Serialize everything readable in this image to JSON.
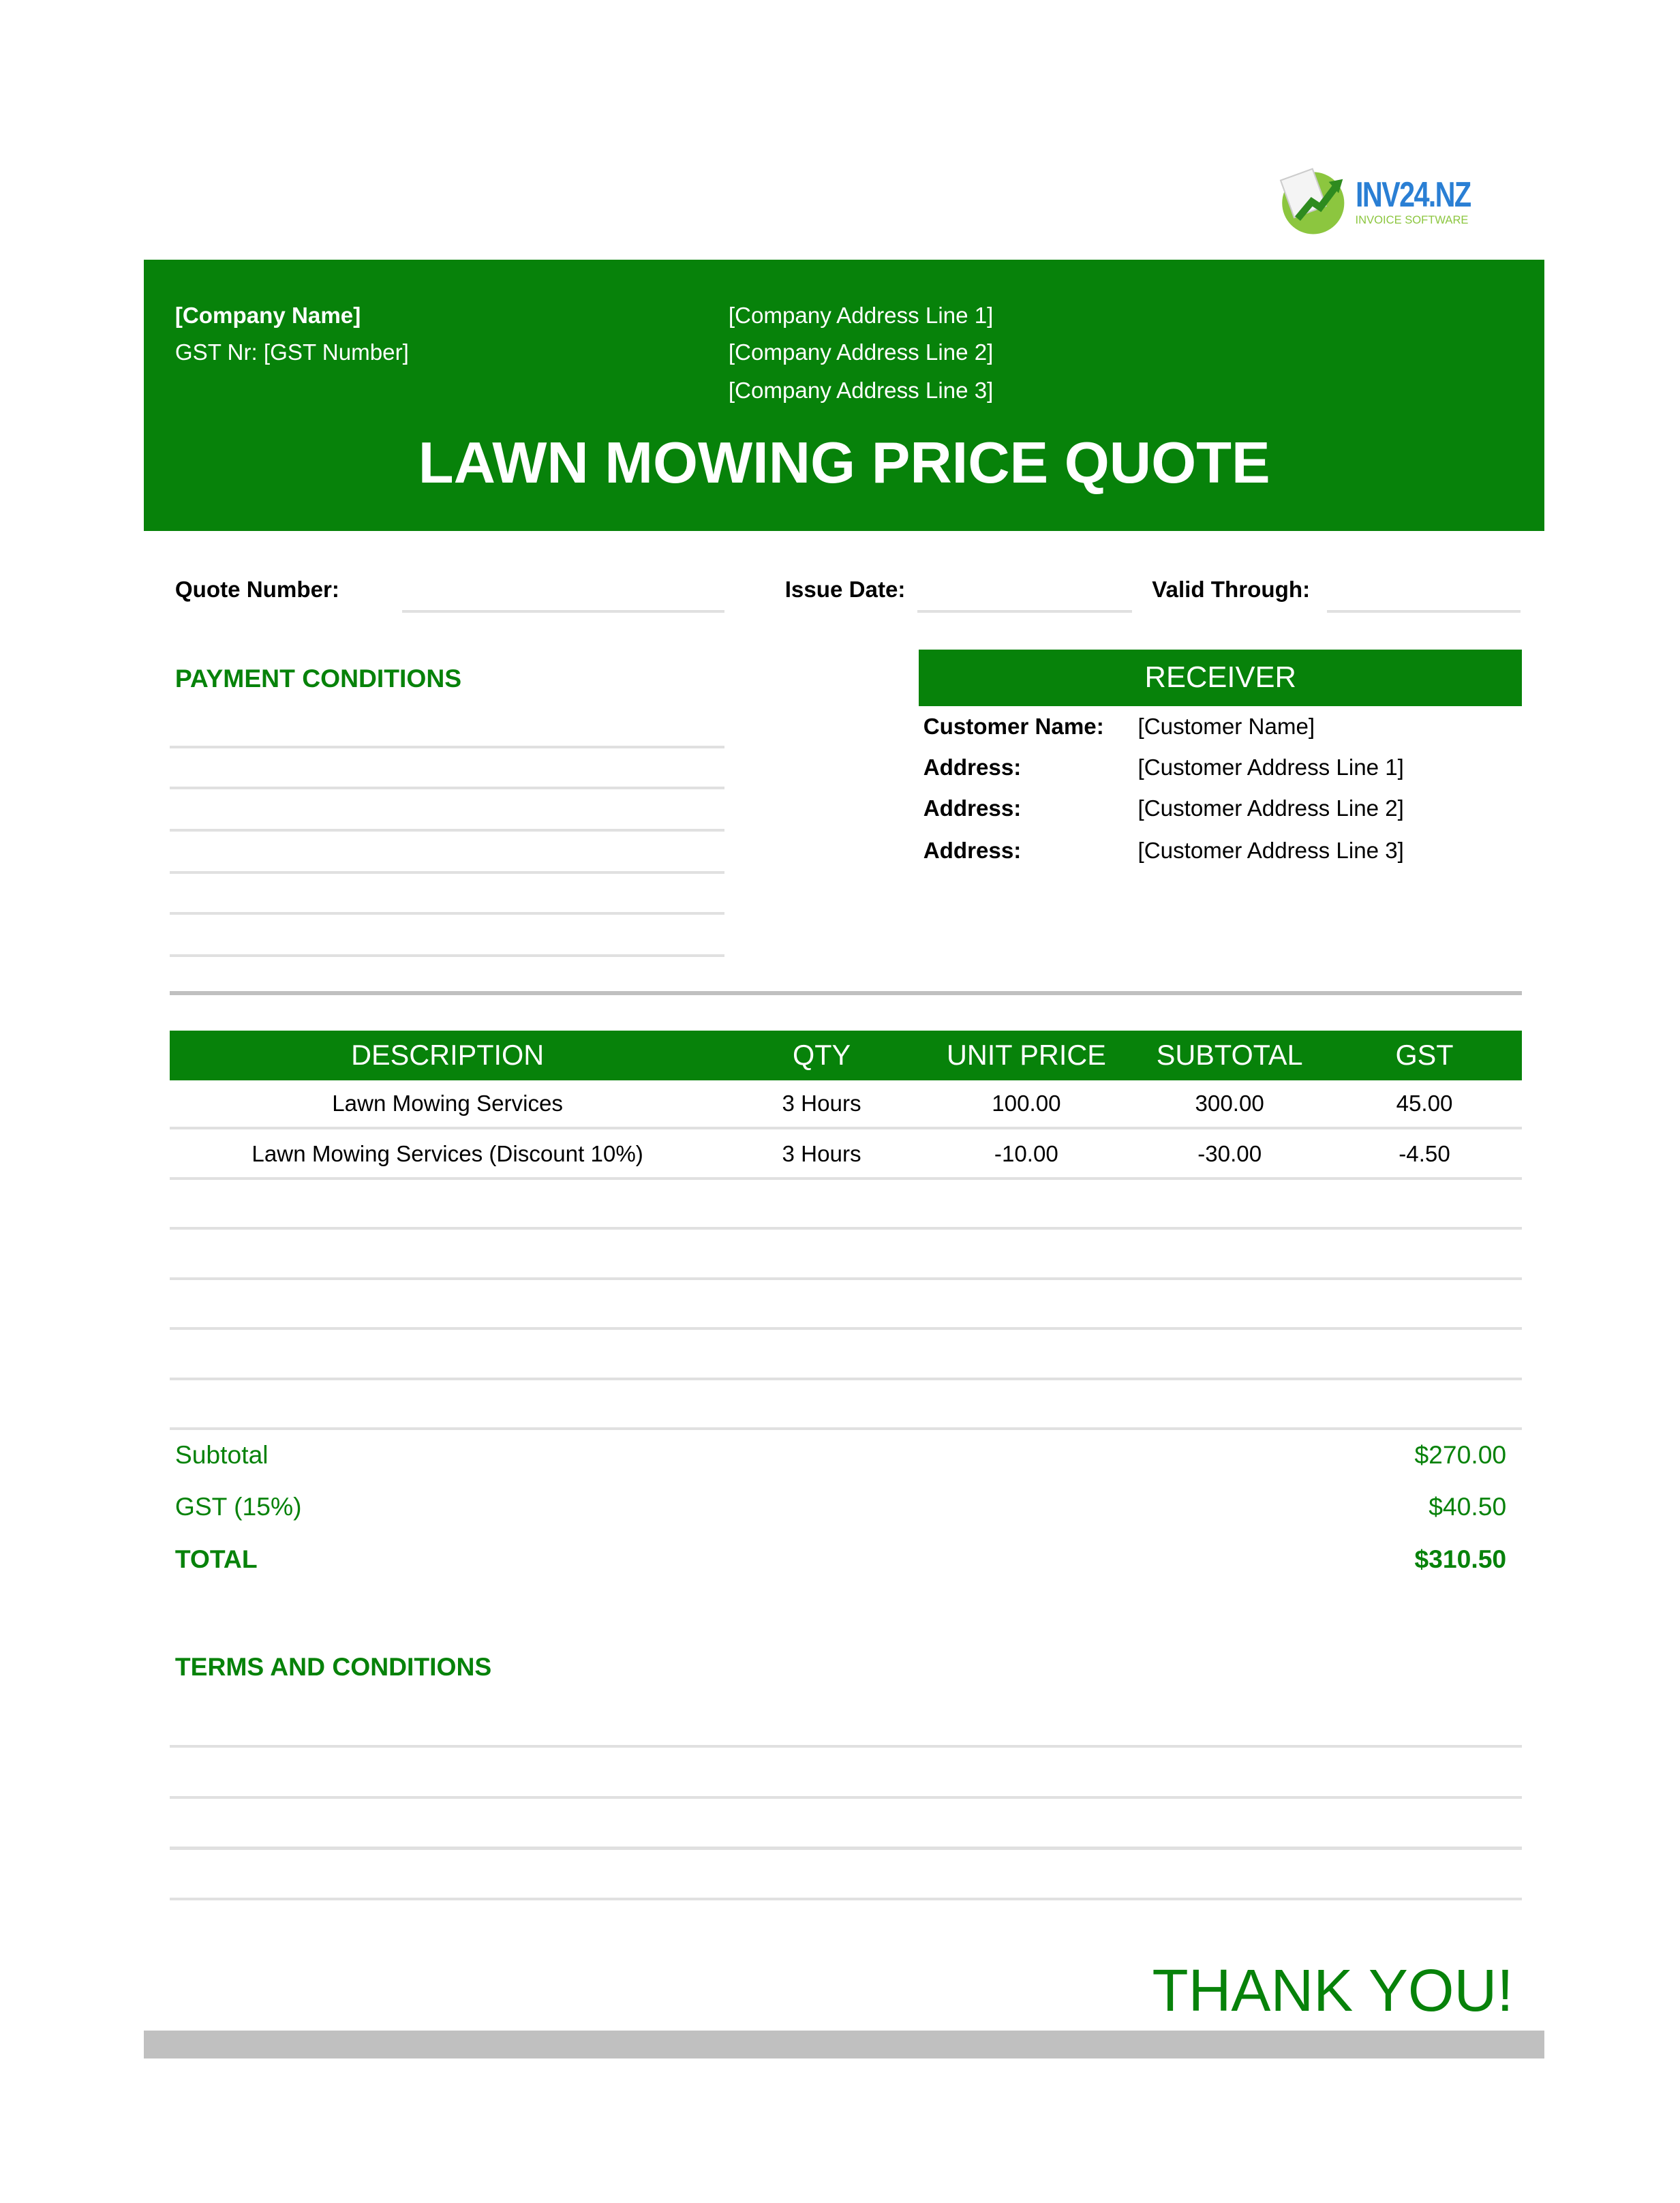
{
  "logo": {
    "text": "INV24.NZ",
    "tagline": "INVOICE SOFTWARE"
  },
  "header": {
    "company_name": "[Company Name]",
    "gst_line": "GST Nr: [GST Number]",
    "address": [
      "[Company Address Line 1]",
      "[Company Address Line 2]",
      "[Company Address Line 3]"
    ],
    "title": "LAWN MOWING PRICE QUOTE"
  },
  "meta": {
    "quote_number_label": "Quote Number:",
    "quote_number": "",
    "issue_date_label": "Issue Date:",
    "issue_date": "",
    "valid_through_label": "Valid Through:",
    "valid_through": ""
  },
  "payment_conditions": {
    "title": "PAYMENT CONDITIONS"
  },
  "receiver": {
    "title": "RECEIVER",
    "rows": [
      {
        "label": "Customer Name:",
        "value": "[Customer Name]"
      },
      {
        "label": "Address:",
        "value": "[Customer Address Line 1]"
      },
      {
        "label": "Address:",
        "value": "[Customer Address Line 2]"
      },
      {
        "label": "Address:",
        "value": "[Customer Address Line 3]"
      }
    ]
  },
  "table": {
    "headers": [
      "DESCRIPTION",
      "QTY",
      "UNIT PRICE",
      "SUBTOTAL",
      "GST"
    ],
    "rows": [
      [
        "Lawn Mowing Services",
        "3 Hours",
        "100.00",
        "300.00",
        "45.00"
      ],
      [
        "Lawn Mowing Services (Discount 10%)",
        "3 Hours",
        "-10.00",
        "-30.00",
        "-4.50"
      ],
      [
        "",
        "",
        "",
        "",
        ""
      ],
      [
        "",
        "",
        "",
        "",
        ""
      ],
      [
        "",
        "",
        "",
        "",
        ""
      ],
      [
        "",
        "",
        "",
        "",
        ""
      ],
      [
        "",
        "",
        "",
        "",
        ""
      ]
    ]
  },
  "totals": {
    "subtotal_label": "Subtotal",
    "subtotal": "$270.00",
    "gst_label": "GST (15%)",
    "gst": "$40.50",
    "total_label": "TOTAL",
    "total": "$310.50"
  },
  "terms": {
    "title": "TERMS AND CONDITIONS"
  },
  "footer": {
    "thank_you": "THANK YOU!"
  },
  "colors": {
    "brand_green": "#07820a",
    "rule_gray": "#c0c0c0"
  }
}
